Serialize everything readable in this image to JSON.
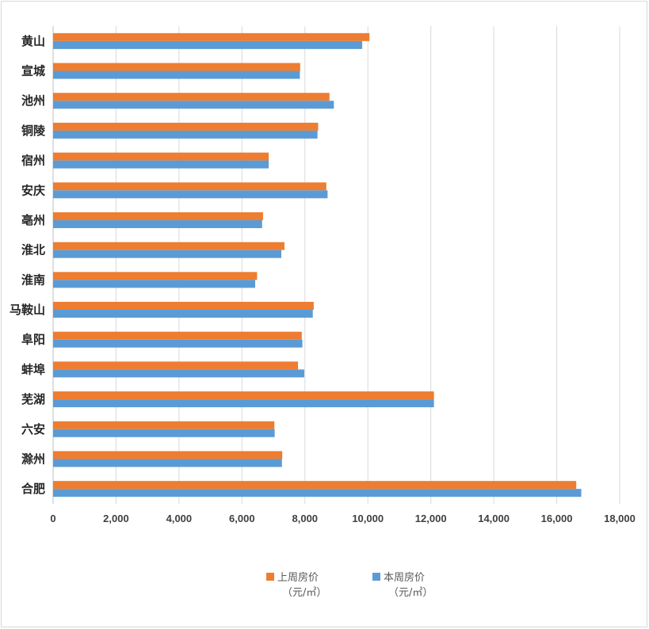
{
  "chart_data": {
    "type": "bar",
    "orientation": "horizontal",
    "categories": [
      "黄山",
      "宣城",
      "池州",
      "铜陵",
      "宿州",
      "安庆",
      "亳州",
      "淮北",
      "淮南",
      "马鞍山",
      "阜阳",
      "蚌埠",
      "芜湖",
      "六安",
      "滁州",
      "合肥"
    ],
    "series": [
      {
        "name": "上周房价",
        "unit": "（元/㎡）",
        "color": "#ED7D31",
        "values": [
          10050,
          7850,
          8780,
          8420,
          6850,
          8680,
          6670,
          7350,
          6480,
          8280,
          7900,
          7780,
          12100,
          7030,
          7280,
          16620
        ]
      },
      {
        "name": "本周房价",
        "unit": "（元/㎡）",
        "color": "#5B9BD5",
        "values": [
          9820,
          7840,
          8920,
          8400,
          6850,
          8720,
          6640,
          7250,
          6420,
          8250,
          7920,
          7980,
          12100,
          7040,
          7270,
          16780
        ]
      }
    ],
    "xlim": [
      0,
      18000
    ],
    "xticks": [
      0,
      2000,
      4000,
      6000,
      8000,
      10000,
      12000,
      14000,
      16000,
      18000
    ],
    "xtick_labels": [
      "0",
      "2,000",
      "4,000",
      "6,000",
      "8,000",
      "10,000",
      "12,000",
      "14,000",
      "16,000",
      "18,000"
    ],
    "grid": true,
    "legend_position": "bottom",
    "title": "",
    "xlabel": "",
    "ylabel": ""
  }
}
